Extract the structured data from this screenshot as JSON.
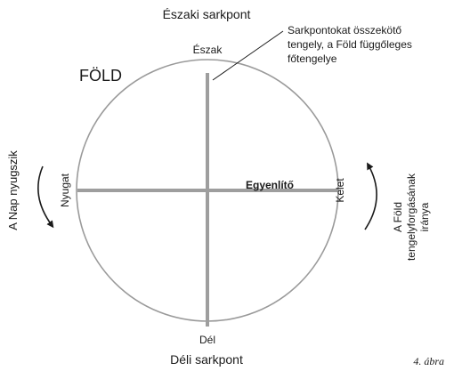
{
  "diagram": {
    "north_pole_label": "Északi sarkpont",
    "south_pole_label": "Déli sarkpont",
    "earth_label": "FÖLD",
    "north_label": "Észak",
    "south_label": "Dél",
    "west_label": "Nyugat",
    "east_label": "Kelet",
    "equator_label": "Egyenlítő",
    "axis_note_lines": [
      "Sarkpontokat összekötő",
      "tengely, a Föld függőleges",
      "főtengelye"
    ],
    "sunset_label": "A Nap nyugszik",
    "rotation_label_lines": [
      "A Föld",
      "tengelyforgásának",
      "iránya"
    ],
    "figure_caption": "4. ábra",
    "colors": {
      "circle": "#9a9a9a",
      "cross_lines": "#9e9e9e",
      "text": "#1a1a1a"
    }
  }
}
